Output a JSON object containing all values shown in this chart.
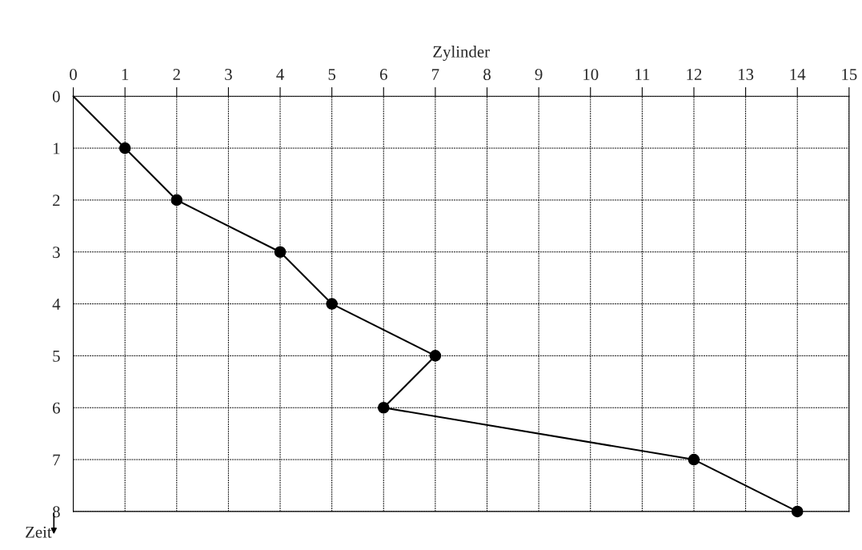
{
  "chart_data": {
    "type": "line",
    "xlabel": "Zylinder",
    "ylabel": "Zeit",
    "series": [
      {
        "color": "#000000",
        "x": [
          0,
          1,
          2,
          4,
          5,
          7,
          6,
          12,
          14
        ],
        "values": [
          0,
          1,
          2,
          3,
          4,
          5,
          6,
          7,
          8
        ],
        "marker": "none"
      },
      {
        "type": "scatter",
        "color": "#000000",
        "x": [
          1,
          2,
          4,
          5,
          7,
          6,
          12,
          14
        ],
        "values": [
          1,
          2,
          3,
          4,
          5,
          6,
          7,
          8
        ],
        "marker": "circle"
      }
    ],
    "xlim": [
      0,
      15
    ],
    "xticks": [
      0,
      1,
      2,
      3,
      4,
      5,
      6,
      7,
      8,
      9,
      10,
      11,
      12,
      13,
      14,
      15
    ],
    "ylim": [
      8,
      0
    ],
    "yticks": [
      0,
      1,
      2,
      3,
      4,
      5,
      6,
      7,
      8
    ],
    "grid": true,
    "line_style": "solid"
  }
}
